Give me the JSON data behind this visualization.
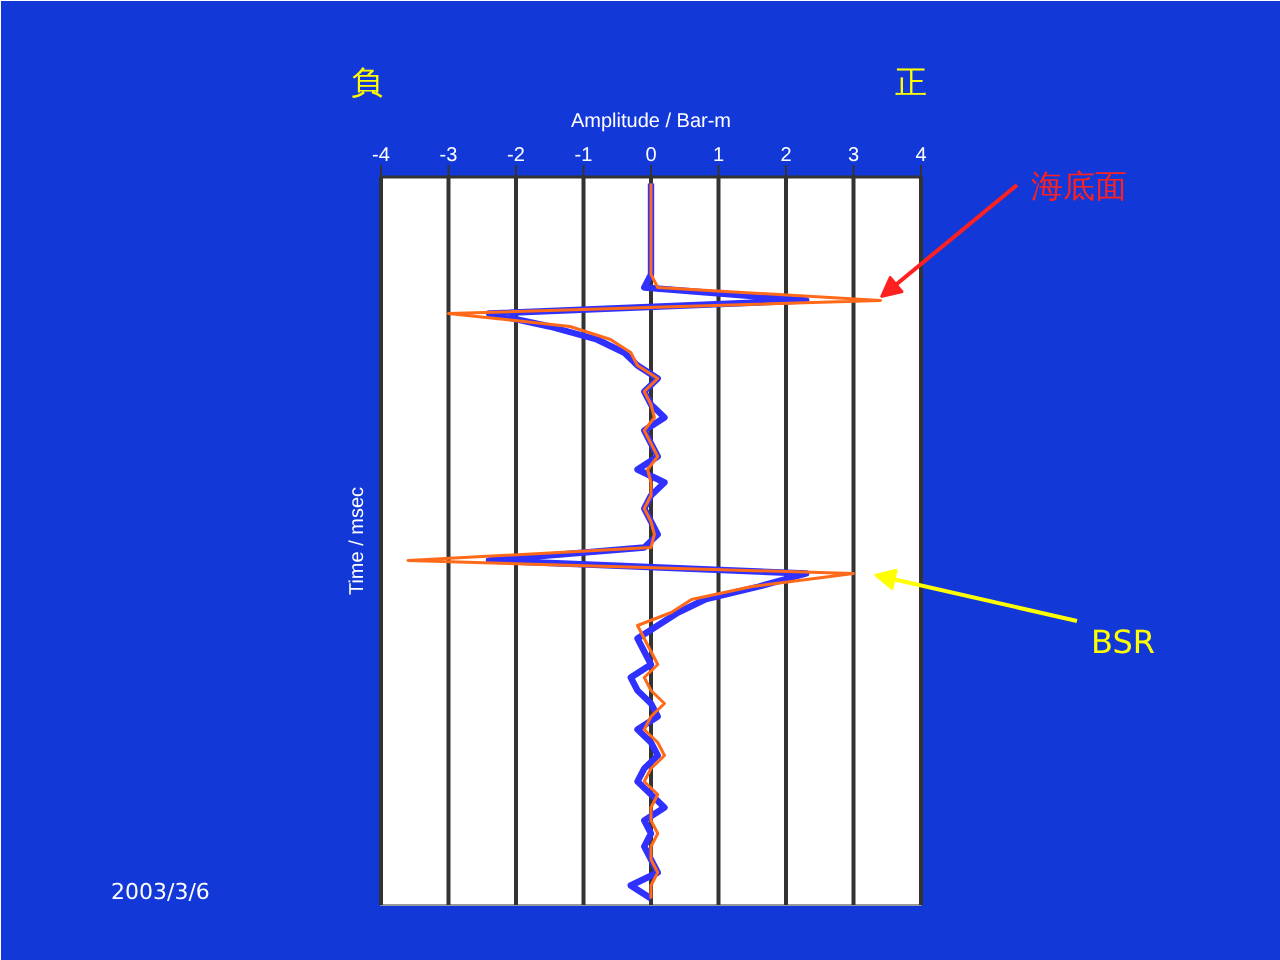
{
  "chart_data": {
    "type": "line",
    "orientation": "horizontal",
    "xlabel": "Amplitude / Bar-m",
    "ylabel": "Time / msec",
    "categories": [
      null,
      null,
      null,
      null,
      null,
      null,
      null,
      null,
      null,
      null,
      null,
      null,
      null,
      null,
      null,
      null,
      null,
      null,
      null,
      null,
      null,
      null,
      null,
      null,
      null,
      null,
      null,
      null,
      null,
      null,
      null,
      null,
      null,
      null,
      null,
      null,
      null,
      null,
      null,
      null,
      null,
      null,
      null,
      null,
      null,
      null,
      null,
      null,
      null,
      null,
      null,
      null,
      null,
      null,
      null,
      null
    ],
    "xlim": [
      -4,
      4
    ],
    "xticks": [
      -4,
      -3,
      -2,
      -1,
      0,
      1,
      2,
      3,
      4
    ],
    "grid": "x",
    "series": [
      {
        "color": "#3030ff",
        "values": [
          0,
          0,
          0,
          0,
          0,
          0,
          0,
          0,
          -0.1,
          2.3,
          -2.4,
          -1.5,
          -0.8,
          -0.4,
          -0.2,
          0.1,
          -0.1,
          0,
          0.2,
          -0.1,
          0,
          0.1,
          -0.2,
          0.2,
          0,
          -0.1,
          0,
          0.1,
          -0.1,
          -2.4,
          2.3,
          1.6,
          0.8,
          0.4,
          0.1,
          -0.2,
          -0.1,
          0,
          -0.3,
          -0.2,
          0,
          0.1,
          -0.2,
          0,
          0.1,
          -0.1,
          -0.2,
          0,
          0.2,
          -0.1,
          0,
          -0.1,
          0,
          0.1,
          -0.3,
          0
        ]
      },
      {
        "color": "#ff6a1a",
        "values": [
          0,
          0,
          0,
          0,
          0,
          0,
          0,
          0,
          0.1,
          3.4,
          -3.0,
          -1.2,
          -0.6,
          -0.3,
          -0.2,
          0.1,
          -0.1,
          0,
          0.05,
          -0.1,
          0,
          0.1,
          -0.05,
          0,
          0,
          -0.1,
          0,
          0.05,
          0,
          -3.6,
          3.0,
          1.5,
          0.6,
          0.3,
          -0.2,
          -0.1,
          0,
          0.1,
          -0.1,
          0,
          0.2,
          0,
          -0.1,
          0.1,
          0.2,
          0,
          -0.1,
          0.1,
          0,
          0,
          0.1,
          0,
          0,
          0.1,
          0,
          0
        ]
      }
    ],
    "annotations": [
      "負",
      "正",
      "海底面",
      "BSR",
      "2003/3/6"
    ]
  }
}
